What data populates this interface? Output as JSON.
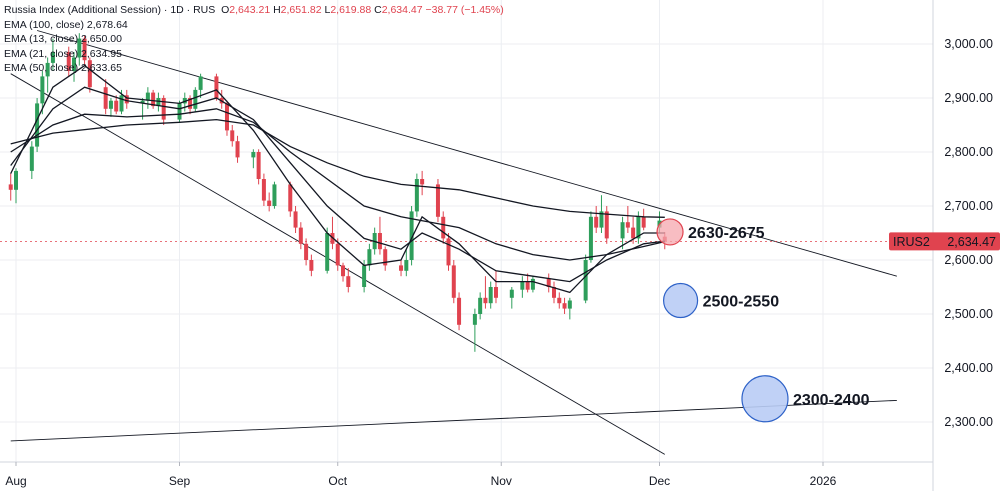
{
  "legend": {
    "title": "Russia Index (Additional Session) · 1D · RUS",
    "o_label": "O",
    "o": "2,643.21",
    "h_label": "H",
    "h": "2,651.82",
    "l_label": "L",
    "l": "2,619.88",
    "c_label": "C",
    "c": "2,634.47",
    "change": "−38.77 (−1.45%)",
    "emas": [
      {
        "label": "EMA (100, close)",
        "value": "2,678.64"
      },
      {
        "label": "EMA (13, close)",
        "value": "2,650.00"
      },
      {
        "label": "EMA (21, close)",
        "value": "2,634.95"
      },
      {
        "label": "EMA (50, close)",
        "value": "2,633.65"
      }
    ]
  },
  "colors": {
    "up": "#2e9e5b",
    "down": "#e0434f",
    "ema": "#131722",
    "trend": "#131722",
    "price_tag": "#e0434f",
    "zone_red": "#f5a7ad",
    "zone_blue": "#b9ccf5",
    "zone_blue_stroke": "#2e62c8"
  },
  "chart_data": {
    "type": "candlestick",
    "symbol": "IRUS2",
    "last_price": "2,634.47",
    "y_ticks": [
      "3,000.00",
      "2,900.00",
      "2,800.00",
      "2,700.00",
      "2,600.00",
      "2,500.00",
      "2,400.00",
      "2,300.00"
    ],
    "y_tick_values": [
      3000,
      2900,
      2800,
      2700,
      2600,
      2500,
      2400,
      2300
    ],
    "ylim": [
      2240,
      3060
    ],
    "x_ticks": [
      "Aug",
      "Sep",
      "Oct",
      "Nov",
      "Dec",
      "2026"
    ],
    "x_tick_dates": [
      "2025-08-01",
      "2025-09-01",
      "2025-10-01",
      "2025-11-01",
      "2025-12-01",
      "2026-01-01"
    ],
    "xlim": [
      "2025-07-31",
      "2026-01-15"
    ],
    "candles_ohlc": [
      [
        "2025-07-31",
        2740,
        2760,
        2710,
        2730
      ],
      [
        "2025-08-01",
        2730,
        2770,
        2705,
        2765
      ],
      [
        "2025-08-04",
        2765,
        2820,
        2750,
        2810
      ],
      [
        "2025-08-05",
        2810,
        2900,
        2800,
        2890
      ],
      [
        "2025-08-06",
        2890,
        2950,
        2870,
        2940
      ],
      [
        "2025-08-07",
        2940,
        2975,
        2910,
        2965
      ],
      [
        "2025-08-08",
        2965,
        3010,
        2950,
        2985
      ],
      [
        "2025-08-11",
        2985,
        2995,
        2940,
        2950
      ],
      [
        "2025-08-12",
        2950,
        2985,
        2930,
        2975
      ],
      [
        "2025-08-13",
        2975,
        3020,
        2960,
        3010
      ],
      [
        "2025-08-14",
        3010,
        3015,
        2960,
        2970
      ],
      [
        "2025-08-15",
        2970,
        2975,
        2910,
        2920
      ],
      [
        "2025-08-18",
        2920,
        2935,
        2870,
        2880
      ],
      [
        "2025-08-19",
        2880,
        2900,
        2865,
        2895
      ],
      [
        "2025-08-20",
        2895,
        2905,
        2870,
        2875
      ],
      [
        "2025-08-21",
        2875,
        2915,
        2870,
        2905
      ],
      [
        "2025-08-22",
        2905,
        2915,
        2880,
        2890
      ],
      [
        "2025-08-25",
        2890,
        2900,
        2860,
        2895
      ],
      [
        "2025-08-26",
        2895,
        2920,
        2880,
        2910
      ],
      [
        "2025-08-27",
        2910,
        2915,
        2880,
        2885
      ],
      [
        "2025-08-28",
        2885,
        2910,
        2875,
        2900
      ],
      [
        "2025-08-29",
        2900,
        2905,
        2850,
        2860
      ],
      [
        "2025-09-01",
        2860,
        2895,
        2855,
        2890
      ],
      [
        "2025-09-02",
        2890,
        2910,
        2875,
        2900
      ],
      [
        "2025-09-03",
        2900,
        2905,
        2870,
        2880
      ],
      [
        "2025-09-04",
        2880,
        2920,
        2875,
        2915
      ],
      [
        "2025-09-05",
        2915,
        2945,
        2900,
        2940
      ],
      [
        "2025-09-08",
        2940,
        2945,
        2895,
        2900
      ],
      [
        "2025-09-09",
        2900,
        2915,
        2880,
        2890
      ],
      [
        "2025-09-10",
        2890,
        2895,
        2830,
        2840
      ],
      [
        "2025-09-11",
        2840,
        2850,
        2810,
        2820
      ],
      [
        "2025-09-12",
        2820,
        2830,
        2780,
        2790
      ],
      [
        "2025-09-15",
        2790,
        2805,
        2770,
        2800
      ],
      [
        "2025-09-16",
        2800,
        2805,
        2740,
        2750
      ],
      [
        "2025-09-17",
        2750,
        2760,
        2700,
        2710
      ],
      [
        "2025-09-18",
        2710,
        2725,
        2690,
        2700
      ],
      [
        "2025-09-19",
        2700,
        2745,
        2695,
        2740
      ],
      [
        "2025-09-22",
        2740,
        2745,
        2680,
        2690
      ],
      [
        "2025-09-23",
        2690,
        2700,
        2650,
        2660
      ],
      [
        "2025-09-24",
        2660,
        2670,
        2620,
        2630
      ],
      [
        "2025-09-25",
        2630,
        2640,
        2590,
        2600
      ],
      [
        "2025-09-26",
        2600,
        2610,
        2570,
        2580
      ],
      [
        "2025-09-29",
        2580,
        2660,
        2575,
        2650
      ],
      [
        "2025-09-30",
        2650,
        2680,
        2620,
        2630
      ],
      [
        "2025-10-01",
        2630,
        2640,
        2580,
        2590
      ],
      [
        "2025-10-02",
        2590,
        2595,
        2560,
        2570
      ],
      [
        "2025-10-03",
        2570,
        2585,
        2540,
        2550
      ],
      [
        "2025-10-06",
        2550,
        2600,
        2540,
        2590
      ],
      [
        "2025-10-07",
        2590,
        2630,
        2580,
        2620
      ],
      [
        "2025-10-08",
        2620,
        2660,
        2610,
        2650
      ],
      [
        "2025-10-09",
        2650,
        2680,
        2610,
        2620
      ],
      [
        "2025-10-10",
        2620,
        2625,
        2580,
        2590
      ],
      [
        "2025-10-13",
        2590,
        2600,
        2570,
        2580
      ],
      [
        "2025-10-14",
        2580,
        2620,
        2570,
        2600
      ],
      [
        "2025-10-15",
        2600,
        2700,
        2590,
        2690
      ],
      [
        "2025-10-16",
        2690,
        2760,
        2680,
        2750
      ],
      [
        "2025-10-17",
        2750,
        2765,
        2720,
        2740
      ],
      [
        "2025-10-20",
        2740,
        2750,
        2670,
        2680
      ],
      [
        "2025-10-21",
        2680,
        2690,
        2630,
        2640
      ],
      [
        "2025-10-22",
        2640,
        2650,
        2580,
        2590
      ],
      [
        "2025-10-23",
        2590,
        2600,
        2520,
        2530
      ],
      [
        "2025-10-24",
        2530,
        2540,
        2470,
        2480
      ],
      [
        "2025-10-27",
        2480,
        2510,
        2430,
        2500
      ],
      [
        "2025-10-28",
        2500,
        2540,
        2490,
        2530
      ],
      [
        "2025-10-29",
        2530,
        2570,
        2510,
        2520
      ],
      [
        "2025-10-30",
        2520,
        2560,
        2510,
        2550
      ],
      [
        "2025-10-31",
        2550,
        2580,
        2520,
        2530
      ],
      [
        "2025-11-03",
        2530,
        2550,
        2510,
        2545
      ],
      [
        "2025-11-05",
        2545,
        2570,
        2530,
        2560
      ],
      [
        "2025-11-06",
        2560,
        2575,
        2540,
        2545
      ],
      [
        "2025-11-07",
        2545,
        2570,
        2540,
        2565
      ],
      [
        "2025-11-10",
        2565,
        2575,
        2540,
        2550
      ],
      [
        "2025-11-11",
        2550,
        2560,
        2520,
        2530
      ],
      [
        "2025-11-12",
        2530,
        2540,
        2510,
        2520
      ],
      [
        "2025-11-13",
        2520,
        2530,
        2500,
        2510
      ],
      [
        "2025-11-14",
        2510,
        2530,
        2490,
        2525
      ],
      [
        "2025-11-17",
        2525,
        2610,
        2520,
        2600
      ],
      [
        "2025-11-18",
        2600,
        2690,
        2595,
        2680
      ],
      [
        "2025-11-19",
        2680,
        2700,
        2650,
        2660
      ],
      [
        "2025-11-20",
        2660,
        2720,
        2650,
        2690
      ],
      [
        "2025-11-21",
        2690,
        2700,
        2630,
        2640
      ],
      [
        "2025-11-24",
        2640,
        2680,
        2620,
        2670
      ],
      [
        "2025-11-25",
        2670,
        2700,
        2650,
        2660
      ],
      [
        "2025-11-26",
        2660,
        2680,
        2630,
        2640
      ],
      [
        "2025-11-27",
        2640,
        2690,
        2630,
        2680
      ],
      [
        "2025-11-28",
        2680,
        2695,
        2655,
        2660
      ],
      [
        "2025-12-01",
        2660,
        2690,
        2650,
        2673
      ],
      [
        "2025-12-02",
        2643.21,
        2651.82,
        2619.88,
        2634.47
      ]
    ],
    "ema_13": [
      [
        "2025-07-31",
        2760
      ],
      [
        "2025-08-08",
        2920
      ],
      [
        "2025-08-14",
        2960
      ],
      [
        "2025-08-22",
        2900
      ],
      [
        "2025-09-01",
        2890
      ],
      [
        "2025-09-08",
        2915
      ],
      [
        "2025-09-15",
        2840
      ],
      [
        "2025-09-22",
        2740
      ],
      [
        "2025-09-29",
        2650
      ],
      [
        "2025-10-06",
        2590
      ],
      [
        "2025-10-13",
        2600
      ],
      [
        "2025-10-17",
        2680
      ],
      [
        "2025-10-24",
        2630
      ],
      [
        "2025-10-31",
        2560
      ],
      [
        "2025-11-07",
        2560
      ],
      [
        "2025-11-14",
        2540
      ],
      [
        "2025-11-21",
        2610
      ],
      [
        "2025-11-28",
        2650
      ],
      [
        "2025-12-02",
        2650
      ]
    ],
    "ema_21": [
      [
        "2025-07-31",
        2775
      ],
      [
        "2025-08-08",
        2880
      ],
      [
        "2025-08-14",
        2920
      ],
      [
        "2025-08-22",
        2895
      ],
      [
        "2025-09-01",
        2880
      ],
      [
        "2025-09-08",
        2900
      ],
      [
        "2025-09-15",
        2860
      ],
      [
        "2025-09-22",
        2780
      ],
      [
        "2025-09-29",
        2700
      ],
      [
        "2025-10-06",
        2640
      ],
      [
        "2025-10-13",
        2620
      ],
      [
        "2025-10-17",
        2650
      ],
      [
        "2025-10-24",
        2620
      ],
      [
        "2025-10-31",
        2580
      ],
      [
        "2025-11-07",
        2570
      ],
      [
        "2025-11-14",
        2560
      ],
      [
        "2025-11-21",
        2600
      ],
      [
        "2025-11-28",
        2630
      ],
      [
        "2025-12-02",
        2635
      ]
    ],
    "ema_50": [
      [
        "2025-07-31",
        2800
      ],
      [
        "2025-08-08",
        2850
      ],
      [
        "2025-08-14",
        2870
      ],
      [
        "2025-08-22",
        2865
      ],
      [
        "2025-09-01",
        2870
      ],
      [
        "2025-09-08",
        2880
      ],
      [
        "2025-09-15",
        2855
      ],
      [
        "2025-09-22",
        2800
      ],
      [
        "2025-09-29",
        2750
      ],
      [
        "2025-10-06",
        2700
      ],
      [
        "2025-10-13",
        2680
      ],
      [
        "2025-10-24",
        2660
      ],
      [
        "2025-10-31",
        2630
      ],
      [
        "2025-11-07",
        2610
      ],
      [
        "2025-11-14",
        2600
      ],
      [
        "2025-11-21",
        2610
      ],
      [
        "2025-11-28",
        2625
      ],
      [
        "2025-12-02",
        2634
      ]
    ],
    "ema_100": [
      [
        "2025-07-31",
        2815
      ],
      [
        "2025-08-08",
        2835
      ],
      [
        "2025-08-22",
        2850
      ],
      [
        "2025-09-01",
        2855
      ],
      [
        "2025-09-08",
        2860
      ],
      [
        "2025-09-15",
        2850
      ],
      [
        "2025-09-22",
        2810
      ],
      [
        "2025-09-29",
        2780
      ],
      [
        "2025-10-06",
        2755
      ],
      [
        "2025-10-13",
        2740
      ],
      [
        "2025-10-24",
        2730
      ],
      [
        "2025-10-31",
        2715
      ],
      [
        "2025-11-07",
        2700
      ],
      [
        "2025-11-14",
        2690
      ],
      [
        "2025-11-21",
        2685
      ],
      [
        "2025-11-28",
        2680
      ],
      [
        "2025-12-02",
        2679
      ]
    ],
    "trendlines": [
      [
        [
          "2025-08-05",
          3025
        ],
        [
          "2026-01-15",
          2570
        ]
      ],
      [
        [
          "2025-07-31",
          2945
        ],
        [
          "2025-12-02",
          2240
        ]
      ],
      [
        [
          "2025-07-31",
          2265
        ],
        [
          "2026-01-15",
          2340
        ]
      ]
    ],
    "zones": [
      {
        "label": "2630-2675",
        "center_date": "2025-12-03",
        "center_value": 2652,
        "color": "red"
      },
      {
        "label": "2500-2550",
        "center_date": "2025-12-05",
        "center_value": 2525,
        "color": "blue"
      },
      {
        "label": "2300-2400",
        "center_date": "2025-12-21",
        "center_value": 2343,
        "color": "blue"
      }
    ]
  }
}
